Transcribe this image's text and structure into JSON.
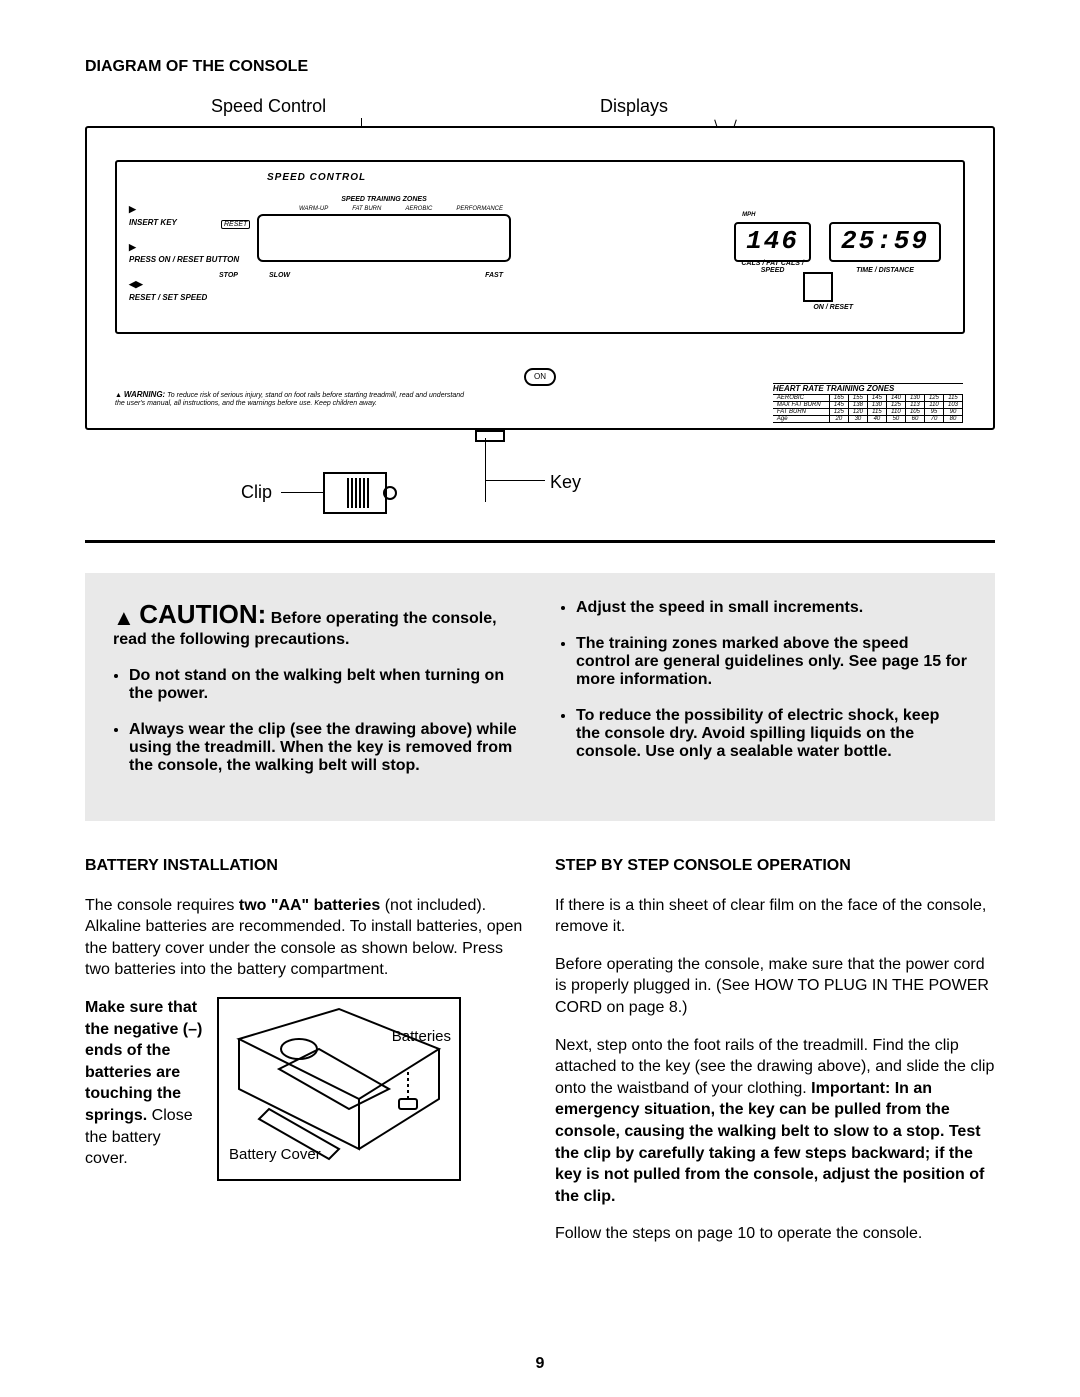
{
  "page_number": "9",
  "section_title_diagram": "DIAGRAM OF THE CONSOLE",
  "callouts": {
    "speed_control": "Speed Control",
    "displays": "Displays",
    "clip": "Clip",
    "key": "Key"
  },
  "console": {
    "speed_control_label": "SPEED CONTROL",
    "steps": {
      "s1_icon": "▶",
      "s1": "INSERT KEY",
      "s2_icon": "▶",
      "s2": "PRESS ON / RESET BUTTON",
      "s3_icon": "◀▶",
      "s3": "RESET / SET SPEED"
    },
    "zones_title": "SPEED TRAINING ZONES",
    "zones": [
      "WARM-UP",
      "FAT BURN",
      "AEROBIC",
      "PERFORMANCE"
    ],
    "reset": "RESET",
    "stop": "STOP",
    "slow": "SLOW",
    "fast": "FAST",
    "disp1_mph": "MPH",
    "disp1_value": "146",
    "disp1_under": "CALS / FAT CALS / SPEED",
    "disp2_value": "25:59",
    "disp2_under": "TIME / DISTANCE",
    "onreset": "ON / RESET",
    "on_pill": "ON",
    "warning_lead": "WARNING:",
    "warning_text": "To reduce risk of serious injury, stand on foot rails before starting treadmill, read and understand the user's manual, all instructions, and the warnings before use. Keep children away.",
    "hr_table": {
      "title": "HEART RATE TRAINING ZONES",
      "rows": [
        [
          "AEROBIC",
          "165",
          "155",
          "145",
          "140",
          "130",
          "125",
          "115"
        ],
        [
          "MAX FAT BURN",
          "145",
          "138",
          "130",
          "125",
          "113",
          "110",
          "103"
        ],
        [
          "FAT BURN",
          "125",
          "120",
          "115",
          "110",
          "105",
          "95",
          "90"
        ],
        [
          "Age",
          "20",
          "30",
          "40",
          "50",
          "60",
          "70",
          "80"
        ]
      ]
    }
  },
  "caution": {
    "heading_big": "CAUTION:",
    "heading_rest": "Before operating the console, read the following precautions.",
    "left": [
      "Do not stand on the walking belt when turning on the power.",
      "Always wear the clip (see the drawing above) while using the treadmill. When the key is removed from the console, the walking belt will stop."
    ],
    "right": [
      "Adjust the speed in small increments.",
      "The training zones marked above the speed control are general guidelines only. See page 15 for more information.",
      "To reduce the possibility of electric shock, keep the console dry. Avoid spilling liquids on the console. Use only a sealable water bottle."
    ]
  },
  "battery": {
    "title": "BATTERY INSTALLATION",
    "p1a": "The console requires ",
    "p1b": "two \"AA\" batteries",
    "p1c": " (not included). Alkaline batteries are recommended. To install batteries, open the battery cover under the console as shown below. Press two batteries into the battery compartment. ",
    "p2_bold": "Make sure that the negative (–) ends of the batteries are touching the springs.",
    "p2_rest": " Close the battery cover.",
    "fig_batteries": "Batteries",
    "fig_cover": "Battery Cover"
  },
  "operation": {
    "title": "STEP BY STEP CONSOLE OPERATION",
    "p1": "If there is a thin sheet of clear film on the face of the console, remove it.",
    "p2": "Before operating the console, make sure that the power cord is properly plugged in. (See HOW TO PLUG IN THE POWER CORD on page 8.)",
    "p3a": "Next, step onto the foot rails of the treadmill. Find the clip attached to the key (see the drawing above), and slide the clip onto the waistband of your clothing. ",
    "p3_bold": "Important: In an emergency situation, the key can be pulled from the console, causing the walking belt to slow to a stop. Test the clip by carefully taking a few steps backward; if the key is not pulled from the console, adjust the position of the clip.",
    "p4": "Follow the steps on page 10 to operate the console."
  }
}
